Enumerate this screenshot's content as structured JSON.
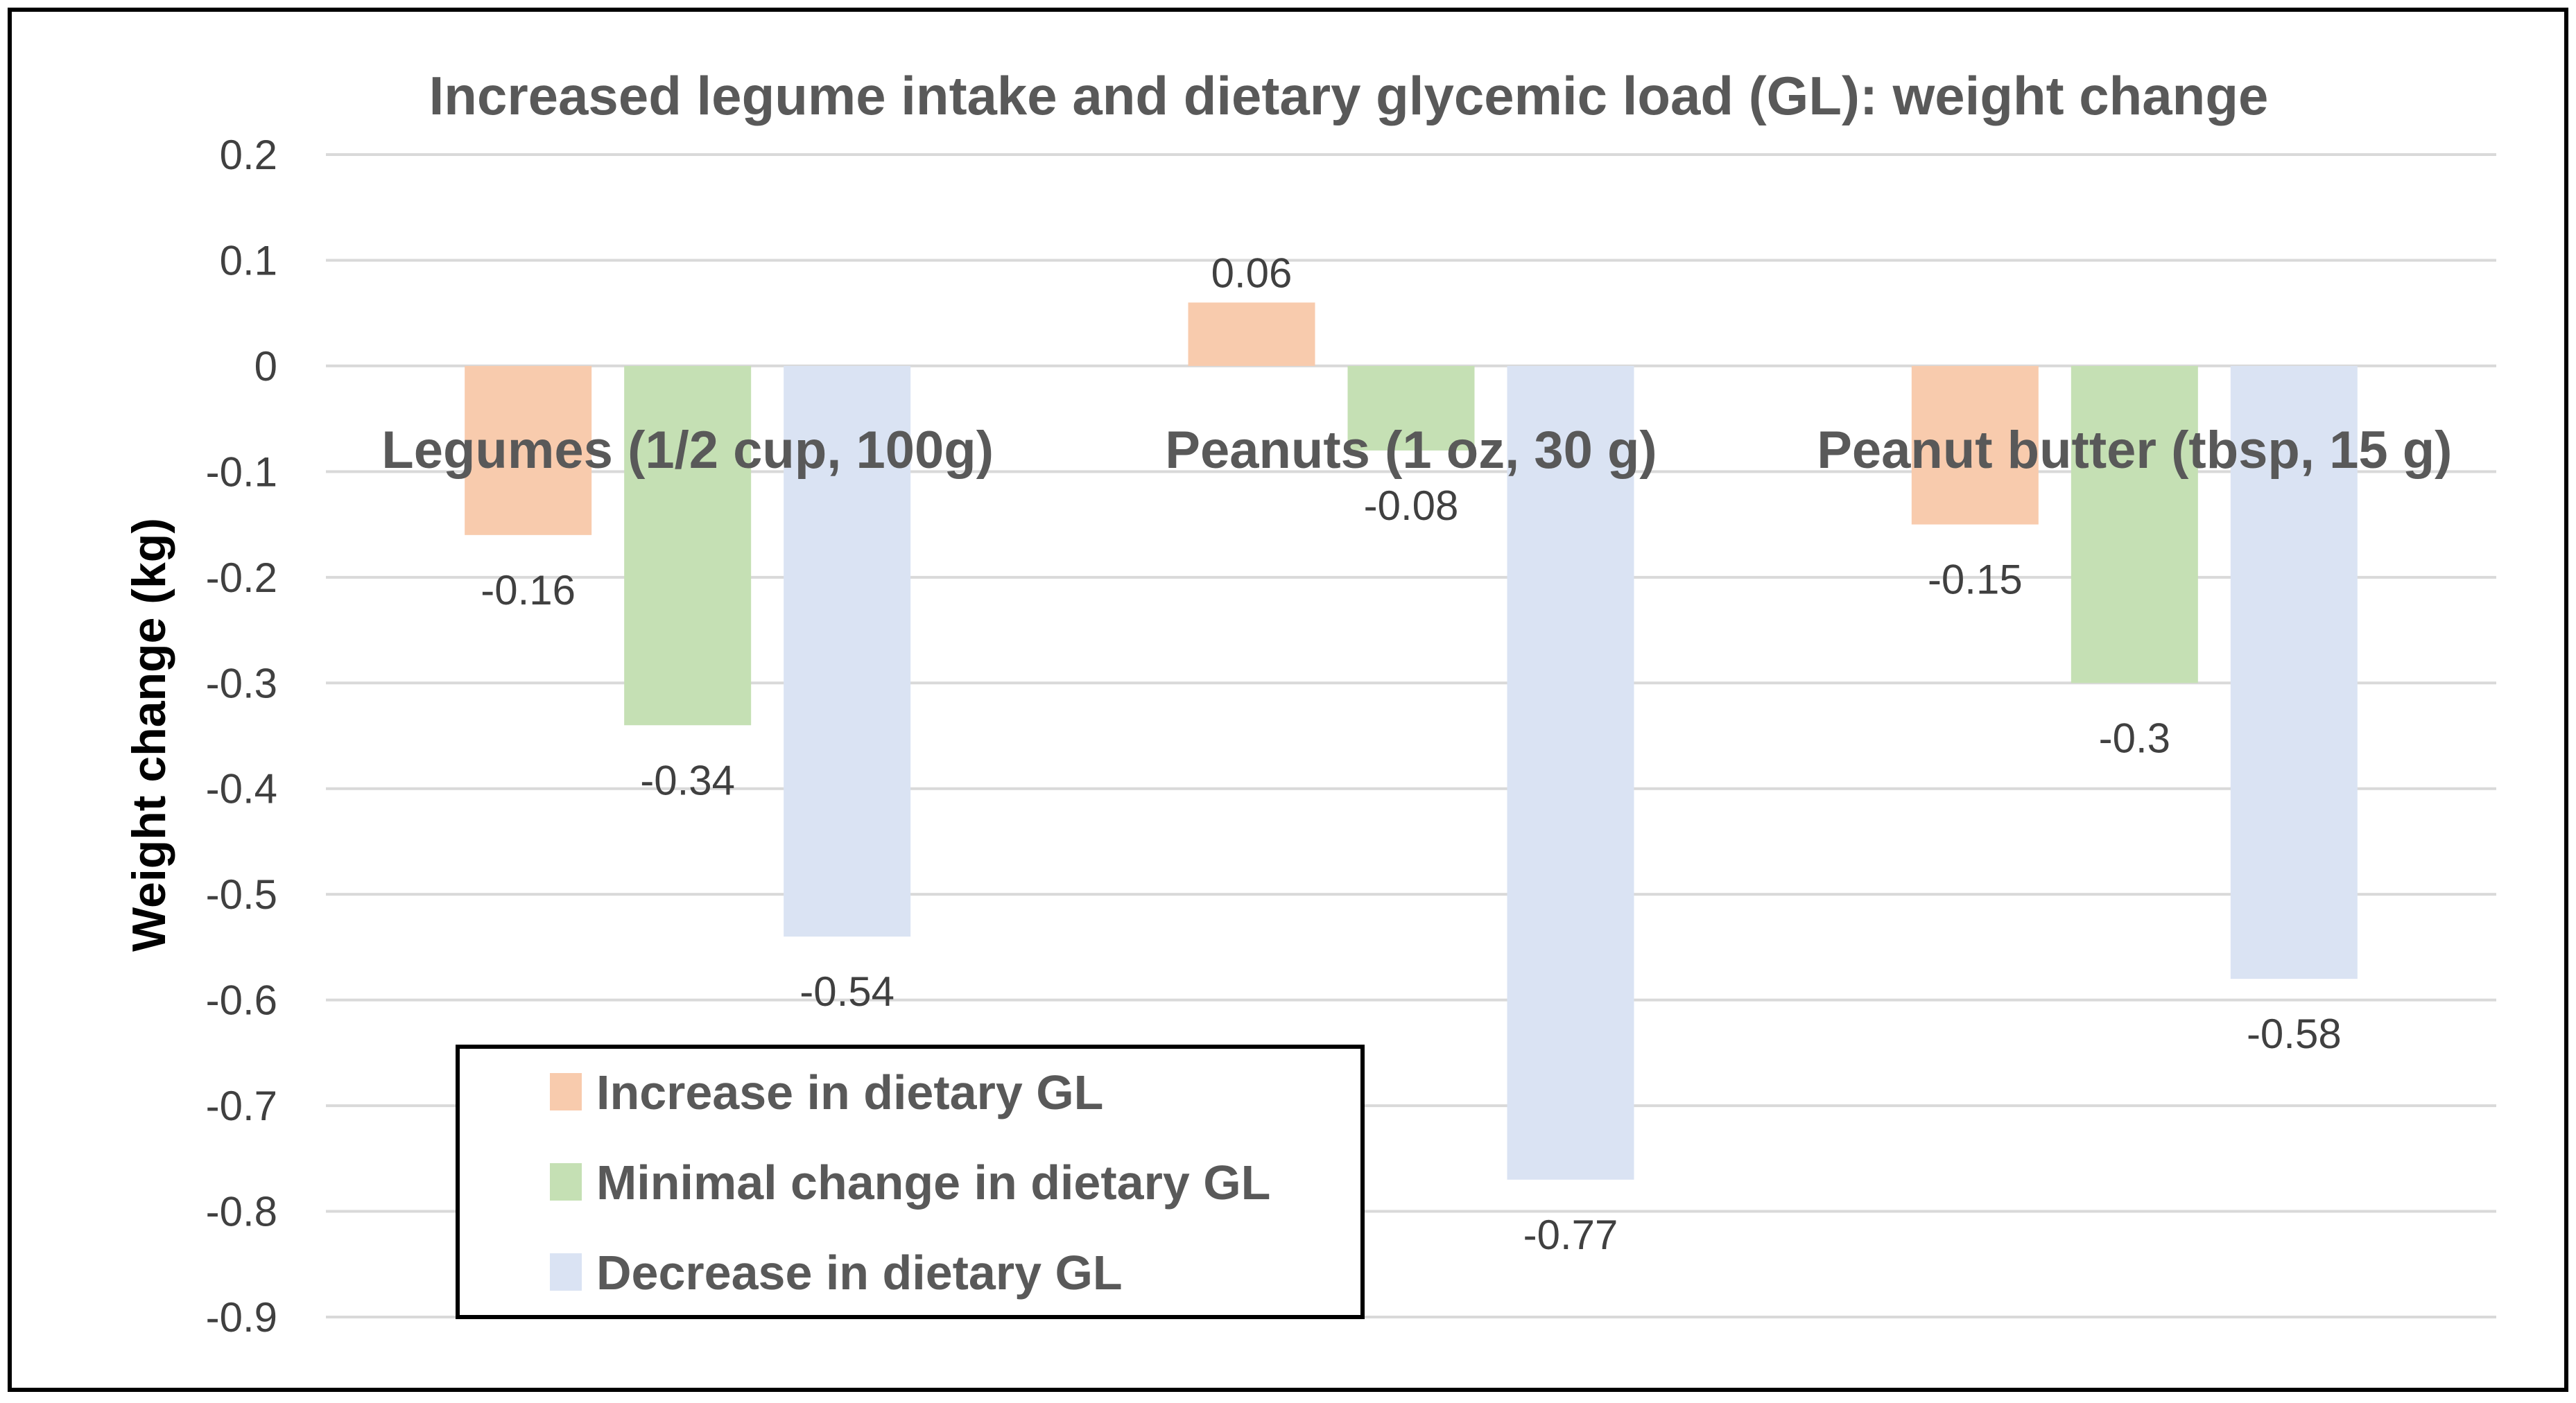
{
  "chart_data": {
    "type": "bar",
    "title": "Increased legume intake and dietary glycemic load (GL): weight change",
    "xlabel": "",
    "ylabel": "Weight change (kg)",
    "ylim": [
      -0.9,
      0.2
    ],
    "yticks": [
      0.2,
      0.1,
      0,
      -0.1,
      -0.2,
      -0.3,
      -0.4,
      -0.5,
      -0.6,
      -0.7,
      -0.8,
      -0.9
    ],
    "ytick_labels": [
      "0.2",
      "0.1",
      "0",
      "-0.1",
      "-0.2",
      "-0.3",
      "-0.4",
      "-0.5",
      "-0.6",
      "-0.7",
      "-0.8",
      "-0.9"
    ],
    "grid": true,
    "legend_position": "bottom-left",
    "categories": [
      "Legumes (1/2 cup, 100g)",
      "Peanuts (1 oz, 30 g)",
      "Peanut butter (tbsp, 15 g)"
    ],
    "series": [
      {
        "name": "Increase in dietary GL",
        "color": "#f8cbad",
        "values": [
          -0.16,
          0.06,
          -0.15
        ],
        "labels": [
          "-0.16",
          "0.06",
          "-0.15"
        ]
      },
      {
        "name": "Minimal change in dietary GL",
        "color": "#c5e0b4",
        "values": [
          -0.34,
          -0.08,
          -0.3
        ],
        "labels": [
          "-0.34",
          "-0.08",
          "-0.3"
        ]
      },
      {
        "name": "Decrease in dietary GL",
        "color": "#dae3f3",
        "values": [
          -0.54,
          -0.77,
          -0.58
        ],
        "labels": [
          "-0.54",
          "-0.77",
          "-0.58"
        ]
      }
    ]
  }
}
